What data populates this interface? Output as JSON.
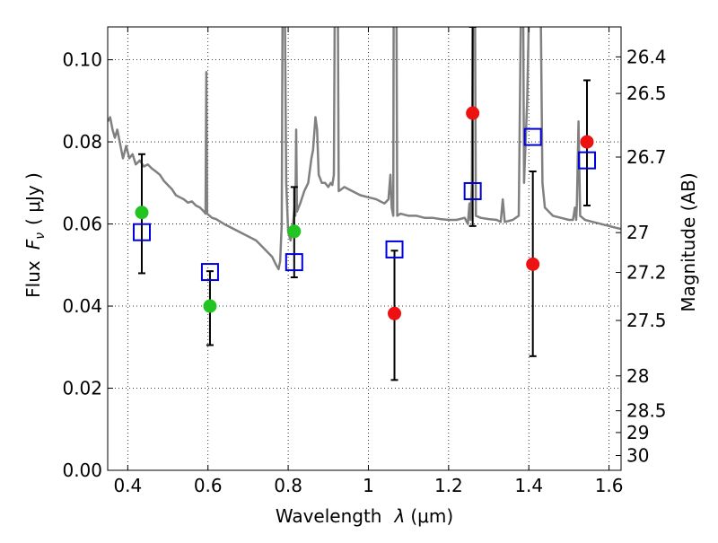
{
  "chart_data": {
    "type": "scatter",
    "xlabel": "Wavelength",
    "xlabel_symbol": "λ",
    "xlabel_unit": "(μm)",
    "ylabel": "Flux",
    "ylabel_symbol": "F",
    "ylabel_subscript": "ν",
    "ylabel_unit": "( μJy )",
    "right_ylabel": "Magnitude (AB)",
    "xlim": [
      0.35,
      1.63
    ],
    "ylim": [
      0.0,
      0.108
    ],
    "grid": true,
    "x_ticks": [
      0.4,
      0.6,
      0.8,
      1.0,
      1.2,
      1.4,
      1.6
    ],
    "x_tick_labels": [
      "0.4",
      "0.6",
      "0.8",
      "1",
      "1.2",
      "1.4",
      "1.6"
    ],
    "y_ticks": [
      0.0,
      0.02,
      0.04,
      0.06,
      0.08,
      0.1
    ],
    "y_tick_labels": [
      "0.00",
      "0.02",
      "0.04",
      "0.06",
      "0.08",
      "0.10"
    ],
    "right_ticks": [
      {
        "label": "26.4",
        "flux": 0.1007
      },
      {
        "label": "26.5",
        "flux": 0.0918
      },
      {
        "label": "26.7",
        "flux": 0.0763
      },
      {
        "label": "27",
        "flux": 0.0579
      },
      {
        "label": "27.2",
        "flux": 0.0482
      },
      {
        "label": "27.5",
        "flux": 0.0365
      },
      {
        "label": "28",
        "flux": 0.023
      },
      {
        "label": "28.5",
        "flux": 0.0145
      },
      {
        "label": "29",
        "flux": 0.0092
      },
      {
        "label": "30",
        "flux": 0.0036
      }
    ],
    "colors": {
      "spectrum": "#808080",
      "green_points": "#22c422",
      "red_points": "#ee1111",
      "model_squares": "#0000dd",
      "errorbars": "#000000"
    },
    "series": [
      {
        "marker": "errorbar",
        "values": [
          {
            "x": 0.435,
            "y": 0.0628,
            "lo": 0.048,
            "hi": 0.077
          },
          {
            "x": 0.605,
            "y": 0.04,
            "lo": 0.0305,
            "hi": 0.0485
          },
          {
            "x": 0.815,
            "y": 0.0582,
            "lo": 0.047,
            "hi": 0.069
          },
          {
            "x": 1.065,
            "y": 0.0382,
            "lo": 0.022,
            "hi": 0.0535
          },
          {
            "x": 1.26,
            "y": 0.087,
            "lo": 0.0595,
            "hi": 0.108
          },
          {
            "x": 1.41,
            "y": 0.0502,
            "lo": 0.0278,
            "hi": 0.0728
          },
          {
            "x": 1.545,
            "y": 0.08,
            "lo": 0.0645,
            "hi": 0.095
          }
        ]
      },
      {
        "marker": "square-open",
        "values": [
          {
            "x": 0.435,
            "y": 0.058
          },
          {
            "x": 0.605,
            "y": 0.0483
          },
          {
            "x": 0.815,
            "y": 0.0507
          },
          {
            "x": 1.065,
            "y": 0.0538
          },
          {
            "x": 1.26,
            "y": 0.068
          },
          {
            "x": 1.41,
            "y": 0.0812
          },
          {
            "x": 1.545,
            "y": 0.0755
          }
        ]
      },
      {
        "marker": "circle-green",
        "values": [
          {
            "x": 0.435,
            "y": 0.0628
          },
          {
            "x": 0.605,
            "y": 0.04
          },
          {
            "x": 0.815,
            "y": 0.0582
          }
        ]
      },
      {
        "marker": "circle-red",
        "values": [
          {
            "x": 1.065,
            "y": 0.0382
          },
          {
            "x": 1.26,
            "y": 0.087
          },
          {
            "x": 1.41,
            "y": 0.0502
          },
          {
            "x": 1.545,
            "y": 0.08
          }
        ]
      },
      {
        "marker": "line",
        "points": [
          [
            0.35,
            0.085
          ],
          [
            0.356,
            0.086
          ],
          [
            0.362,
            0.083
          ],
          [
            0.368,
            0.081
          ],
          [
            0.374,
            0.083
          ],
          [
            0.38,
            0.08
          ],
          [
            0.388,
            0.076
          ],
          [
            0.396,
            0.079
          ],
          [
            0.404,
            0.076
          ],
          [
            0.412,
            0.077
          ],
          [
            0.42,
            0.0745
          ],
          [
            0.43,
            0.0755
          ],
          [
            0.44,
            0.074
          ],
          [
            0.45,
            0.0745
          ],
          [
            0.46,
            0.0735
          ],
          [
            0.47,
            0.0728
          ],
          [
            0.48,
            0.072
          ],
          [
            0.49,
            0.0705
          ],
          [
            0.5,
            0.0695
          ],
          [
            0.51,
            0.0685
          ],
          [
            0.52,
            0.067
          ],
          [
            0.53,
            0.0665
          ],
          [
            0.54,
            0.066
          ],
          [
            0.55,
            0.0652
          ],
          [
            0.56,
            0.0655
          ],
          [
            0.57,
            0.0645
          ],
          [
            0.58,
            0.064
          ],
          [
            0.59,
            0.063
          ],
          [
            0.594,
            0.0625
          ],
          [
            0.596,
            0.097
          ],
          [
            0.598,
            0.0625
          ],
          [
            0.61,
            0.0615
          ],
          [
            0.62,
            0.0612
          ],
          [
            0.64,
            0.06
          ],
          [
            0.66,
            0.059
          ],
          [
            0.68,
            0.058
          ],
          [
            0.7,
            0.057
          ],
          [
            0.72,
            0.056
          ],
          [
            0.74,
            0.054
          ],
          [
            0.76,
            0.052
          ],
          [
            0.77,
            0.05
          ],
          [
            0.776,
            0.049
          ],
          [
            0.78,
            0.051
          ],
          [
            0.784,
            0.06
          ],
          [
            0.786,
            0.11
          ],
          [
            0.792,
            0.11
          ],
          [
            0.795,
            0.07
          ],
          [
            0.8,
            0.058
          ],
          [
            0.806,
            0.056
          ],
          [
            0.812,
            0.06
          ],
          [
            0.816,
            0.064
          ],
          [
            0.818,
            0.062
          ],
          [
            0.82,
            0.083
          ],
          [
            0.822,
            0.063
          ],
          [
            0.83,
            0.065
          ],
          [
            0.84,
            0.068
          ],
          [
            0.85,
            0.07
          ],
          [
            0.858,
            0.076
          ],
          [
            0.862,
            0.078
          ],
          [
            0.868,
            0.086
          ],
          [
            0.872,
            0.083
          ],
          [
            0.876,
            0.072
          ],
          [
            0.884,
            0.07
          ],
          [
            0.892,
            0.07
          ],
          [
            0.9,
            0.069
          ],
          [
            0.906,
            0.07
          ],
          [
            0.91,
            0.0695
          ],
          [
            0.914,
            0.072
          ],
          [
            0.916,
            0.11
          ],
          [
            0.924,
            0.11
          ],
          [
            0.926,
            0.068
          ],
          [
            0.94,
            0.069
          ],
          [
            0.96,
            0.068
          ],
          [
            0.98,
            0.067
          ],
          [
            1.0,
            0.0665
          ],
          [
            1.02,
            0.066
          ],
          [
            1.04,
            0.065
          ],
          [
            1.05,
            0.066
          ],
          [
            1.055,
            0.072
          ],
          [
            1.058,
            0.064
          ],
          [
            1.062,
            0.062
          ],
          [
            1.063,
            0.11
          ],
          [
            1.07,
            0.11
          ],
          [
            1.072,
            0.062
          ],
          [
            1.08,
            0.0625
          ],
          [
            1.1,
            0.062
          ],
          [
            1.12,
            0.062
          ],
          [
            1.14,
            0.0615
          ],
          [
            1.16,
            0.0615
          ],
          [
            1.18,
            0.0612
          ],
          [
            1.2,
            0.061
          ],
          [
            1.22,
            0.061
          ],
          [
            1.24,
            0.0615
          ],
          [
            1.248,
            0.06
          ],
          [
            1.252,
            0.065
          ],
          [
            1.255,
            0.061
          ],
          [
            1.258,
            0.07
          ],
          [
            1.26,
            0.11
          ],
          [
            1.266,
            0.11
          ],
          [
            1.268,
            0.062
          ],
          [
            1.28,
            0.0615
          ],
          [
            1.3,
            0.0612
          ],
          [
            1.32,
            0.061
          ],
          [
            1.33,
            0.0605
          ],
          [
            1.335,
            0.066
          ],
          [
            1.34,
            0.0605
          ],
          [
            1.36,
            0.061
          ],
          [
            1.375,
            0.062
          ],
          [
            1.38,
            0.11
          ],
          [
            1.386,
            0.11
          ],
          [
            1.388,
            0.07
          ],
          [
            1.396,
            0.09
          ],
          [
            1.4,
            0.11
          ],
          [
            1.43,
            0.11
          ],
          [
            1.434,
            0.07
          ],
          [
            1.44,
            0.064
          ],
          [
            1.46,
            0.062
          ],
          [
            1.48,
            0.0615
          ],
          [
            1.5,
            0.061
          ],
          [
            1.51,
            0.061
          ],
          [
            1.515,
            0.064
          ],
          [
            1.518,
            0.061
          ],
          [
            1.52,
            0.065
          ],
          [
            1.524,
            0.085
          ],
          [
            1.528,
            0.062
          ],
          [
            1.54,
            0.061
          ],
          [
            1.56,
            0.0605
          ],
          [
            1.58,
            0.06
          ],
          [
            1.6,
            0.0595
          ],
          [
            1.62,
            0.059
          ],
          [
            1.63,
            0.0588
          ]
        ]
      }
    ]
  }
}
